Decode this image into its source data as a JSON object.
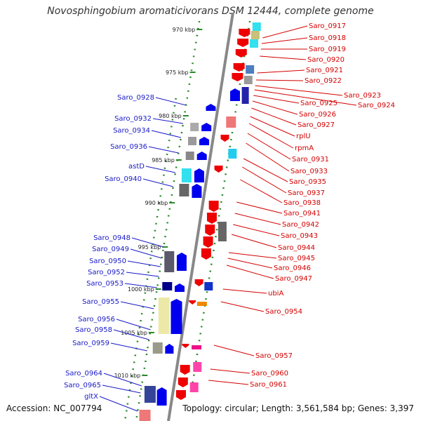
{
  "title": "Novosphingobium aromaticivorans DSM 12444, complete genome",
  "accession": "Accession: NC_007794",
  "topology": "Topology: circular; Length: 3,561,584 bp; Genes: 3,397",
  "colors": {
    "forward_gene": "#ee0000",
    "reverse_gene": "#0000ee",
    "backbone": "#888888",
    "dots": "#2a8a2a",
    "label_forward": "#d40000",
    "label_reverse": "#1a1ac8"
  },
  "kbp_ticks": [
    "970 kbp",
    "975 kbp",
    "980 kbp",
    "985 kbp",
    "990 kbp",
    "995 kbp",
    "1000 kbp",
    "1005 kbp",
    "1010 kbp"
  ],
  "right_labels": [
    "Saro_0917",
    "Saro_0918",
    "Saro_0919",
    "Saro_0920",
    "Saro_0921",
    "Saro_0922",
    "Saro_0923",
    "Saro_0924",
    "Saro_0925",
    "Saro_0926",
    "Saro_0927",
    "rplU",
    "rpmA",
    "Saro_0931",
    "Saro_0933",
    "Saro_0935",
    "Saro_0937",
    "Saro_0938",
    "Saro_0941",
    "Saro_0942",
    "Saro_0943",
    "Saro_0944",
    "Saro_0945",
    "Saro_0946",
    "Saro_0947",
    "ubiA",
    "Saro_0954",
    "Saro_0957",
    "Saro_0960",
    "Saro_0961"
  ],
  "left_labels": [
    "Saro_0928",
    "Saro_0932",
    "Saro_0934",
    "Saro_0936",
    "astD",
    "Saro_0940",
    "Saro_0948",
    "Saro_0949",
    "Saro_0950",
    "Saro_0952",
    "Saro_0953",
    "Saro_0955",
    "Saro_0956",
    "Saro_0958",
    "Saro_0959",
    "Saro_0964",
    "Saro_0965",
    "gltX"
  ]
}
